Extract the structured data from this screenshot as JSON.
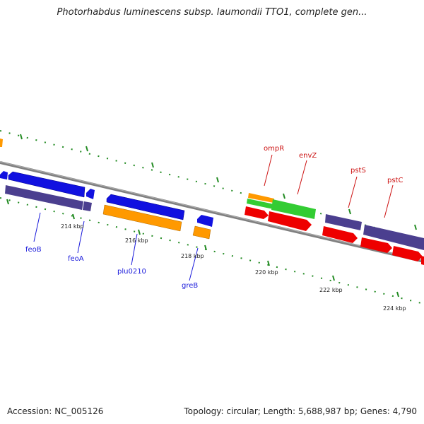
{
  "title": "Photorhabdus luminescens subsp. laumondii TTO1, complete gen...",
  "footer": {
    "accession": "Accession: NC_005126",
    "topology": "Topology: circular; Length: 5,688,987 bp; Genes: 4,790"
  },
  "scale_labels": [
    "214 kbp",
    "216 kbp",
    "218 kbp",
    "220 kbp",
    "222 kbp",
    "224 kbp"
  ],
  "gene_labels": {
    "feoB": "feoB",
    "feoA": "feoA",
    "plu0210": "plu0210",
    "greB": "greB",
    "ompR": "ompR",
    "envZ": "envZ",
    "pstS": "pstS",
    "pstC": "pstC"
  },
  "colors": {
    "backbone": "#808080",
    "tick": "#228b22",
    "blue_gene": "#1111e0",
    "purple_gene": "#4b3f8f",
    "orange_gene": "#ff9900",
    "red_gene": "#ee0000",
    "green_gene": "#33cc33",
    "label_blue": "#1a1adb",
    "label_red": "#cc1111"
  }
}
